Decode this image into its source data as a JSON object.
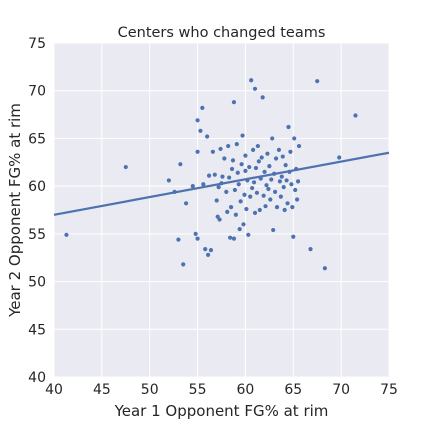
{
  "chart_data": {
    "type": "scatter",
    "title": "Centers who changed teams",
    "xlabel": "Year 1 Opponent FG% at rim",
    "ylabel": "Year 2 Opponent FG% at rim",
    "xlim": [
      40,
      75
    ],
    "ylim": [
      40,
      75
    ],
    "xticks": [
      "40",
      "45",
      "50",
      "55",
      "60",
      "65",
      "70",
      "75"
    ],
    "yticks": [
      "40",
      "45",
      "50",
      "55",
      "60",
      "65",
      "70",
      "75"
    ],
    "grid": true,
    "legend": "none",
    "colors": {
      "background": "#EAEAF2",
      "grid": "#FFFFFF",
      "points": "#4C72B0",
      "line": "#4C72B0"
    },
    "regression_line": {
      "x": [
        40,
        75
      ],
      "y": [
        57.0,
        63.5
      ]
    },
    "points": [
      [
        41.3,
        54.9
      ],
      [
        47.5,
        62.0
      ],
      [
        52.0,
        60.6
      ],
      [
        52.6,
        59.4
      ],
      [
        53.0,
        54.4
      ],
      [
        53.2,
        62.3
      ],
      [
        53.5,
        51.8
      ],
      [
        53.8,
        58.2
      ],
      [
        54.5,
        60.0
      ],
      [
        54.8,
        55.0
      ],
      [
        55.0,
        54.5
      ],
      [
        55.0,
        63.6
      ],
      [
        55.0,
        66.9
      ],
      [
        55.3,
        65.8
      ],
      [
        55.5,
        68.2
      ],
      [
        55.6,
        60.2
      ],
      [
        55.8,
        53.4
      ],
      [
        56.0,
        65.2
      ],
      [
        56.1,
        52.8
      ],
      [
        56.2,
        61.1
      ],
      [
        56.4,
        53.3
      ],
      [
        56.6,
        63.6
      ],
      [
        56.8,
        61.2
      ],
      [
        57.0,
        58.5
      ],
      [
        57.1,
        56.8
      ],
      [
        57.2,
        59.9
      ],
      [
        57.3,
        56.5
      ],
      [
        57.4,
        63.9
      ],
      [
        57.5,
        60.3
      ],
      [
        57.6,
        61.0
      ],
      [
        57.8,
        62.9
      ],
      [
        58.0,
        59.4
      ],
      [
        58.1,
        57.3
      ],
      [
        58.2,
        64.2
      ],
      [
        58.3,
        60.9
      ],
      [
        58.4,
        54.6
      ],
      [
        58.5,
        57.8
      ],
      [
        58.6,
        61.8
      ],
      [
        58.7,
        62.7
      ],
      [
        58.8,
        54.5
      ],
      [
        58.8,
        68.8
      ],
      [
        58.9,
        59.6
      ],
      [
        59.0,
        57.0
      ],
      [
        59.1,
        64.4
      ],
      [
        59.2,
        61.4
      ],
      [
        59.3,
        60.2
      ],
      [
        59.4,
        55.5
      ],
      [
        59.5,
        58.4
      ],
      [
        59.6,
        62.3
      ],
      [
        59.7,
        65.3
      ],
      [
        59.8,
        56.0
      ],
      [
        59.9,
        59.1
      ],
      [
        60.0,
        61.6
      ],
      [
        60.0,
        63.2
      ],
      [
        60.1,
        57.6
      ],
      [
        60.2,
        60.6
      ],
      [
        60.3,
        54.9
      ],
      [
        60.4,
        62.0
      ],
      [
        60.5,
        58.9
      ],
      [
        60.6,
        71.1
      ],
      [
        60.7,
        59.8
      ],
      [
        60.8,
        63.8
      ],
      [
        60.9,
        60.4
      ],
      [
        61.0,
        57.2
      ],
      [
        61.0,
        70.2
      ],
      [
        61.1,
        61.9
      ],
      [
        61.2,
        59.3
      ],
      [
        61.3,
        64.2
      ],
      [
        61.4,
        62.6
      ],
      [
        61.5,
        57.5
      ],
      [
        61.6,
        60.8
      ],
      [
        61.7,
        63.0
      ],
      [
        61.8,
        69.3
      ],
      [
        61.9,
        59.0
      ],
      [
        62.0,
        61.5
      ],
      [
        62.1,
        57.9
      ],
      [
        62.2,
        60.1
      ],
      [
        62.3,
        63.4
      ],
      [
        62.4,
        59.7
      ],
      [
        62.5,
        62.1
      ],
      [
        62.6,
        58.6
      ],
      [
        62.7,
        60.7
      ],
      [
        62.8,
        65.0
      ],
      [
        62.9,
        55.4
      ],
      [
        63.0,
        61.3
      ],
      [
        63.1,
        59.4
      ],
      [
        63.2,
        62.9
      ],
      [
        63.3,
        57.8
      ],
      [
        63.5,
        63.8
      ],
      [
        63.6,
        60.5
      ],
      [
        63.7,
        58.9
      ],
      [
        63.8,
        61.0
      ],
      [
        63.9,
        63.1
      ],
      [
        64.0,
        59.9
      ],
      [
        64.1,
        57.5
      ],
      [
        64.2,
        62.2
      ],
      [
        64.3,
        60.6
      ],
      [
        64.4,
        58.2
      ],
      [
        64.5,
        66.2
      ],
      [
        64.6,
        61.5
      ],
      [
        64.7,
        63.6
      ],
      [
        64.8,
        60.2
      ],
      [
        64.9,
        57.8
      ],
      [
        65.0,
        54.7
      ],
      [
        65.1,
        65.0
      ],
      [
        65.2,
        59.6
      ],
      [
        65.3,
        61.8
      ],
      [
        65.4,
        58.6
      ],
      [
        65.5,
        60.5
      ],
      [
        65.6,
        64.2
      ],
      [
        66.8,
        53.4
      ],
      [
        67.5,
        71.0
      ],
      [
        68.3,
        51.4
      ],
      [
        69.8,
        63.0
      ],
      [
        71.5,
        67.4
      ]
    ]
  }
}
